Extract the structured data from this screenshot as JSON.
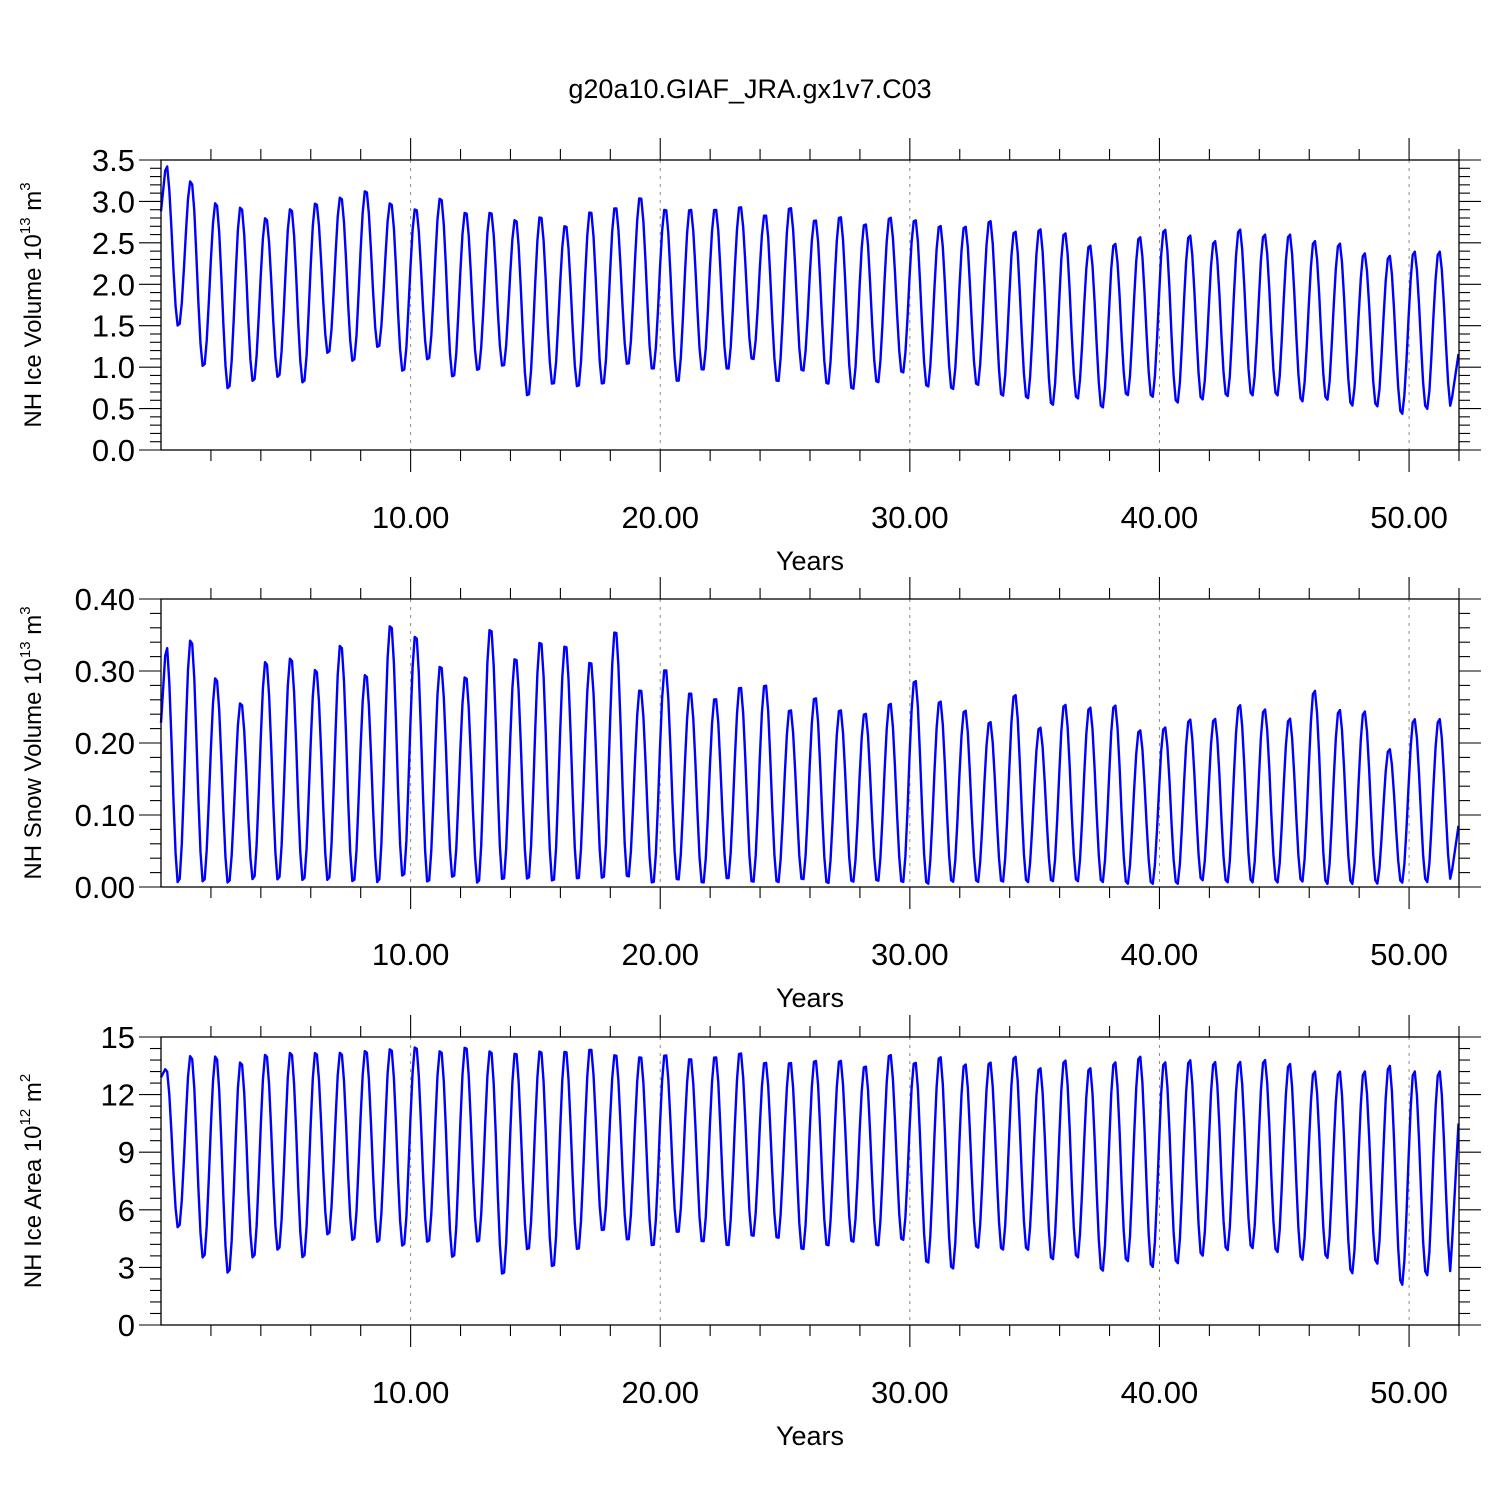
{
  "title": "g20a10.GIAF_JRA.gx1v7.C03",
  "colors": {
    "line": "#0000ff",
    "axis": "#000000",
    "grid": "#8a8a8a"
  },
  "chart_data": [
    {
      "type": "line",
      "ylabel_main": "NH Ice Volume 10",
      "ylabel_exp": "13",
      "ylabel_unit": " m",
      "ylabel_unit_exp": "3",
      "xlabel": "Years",
      "xlim": [
        0,
        52
      ],
      "ylim": [
        0,
        3.5
      ],
      "xticks": [
        10,
        20,
        30,
        40,
        50
      ],
      "xtick_labels": [
        "10.00",
        "20.00",
        "30.00",
        "40.00",
        "50.00"
      ],
      "yticks": [
        0,
        0.5,
        1,
        1.5,
        2,
        2.5,
        3,
        3.5
      ],
      "ytick_labels": [
        "0.0",
        "0.5",
        "1.0",
        "1.5",
        "2.0",
        "2.5",
        "3.0",
        "3.5"
      ],
      "grid_x": true,
      "series": [
        {
          "x_start": 0,
          "x_step": 0.0833,
          "x_end": 52,
          "annual_max": [
            3.47,
            3.26,
            3.0,
            2.95,
            2.82,
            2.93,
            3.0,
            3.07,
            3.15,
            3.0,
            2.93,
            3.06,
            2.89,
            2.89,
            2.8,
            2.84,
            2.73,
            2.9,
            2.95,
            3.07,
            2.93,
            2.93,
            2.93,
            2.96,
            2.86,
            2.95,
            2.8,
            2.84,
            2.75,
            2.83,
            2.8,
            2.73,
            2.72,
            2.79,
            2.66,
            2.69,
            2.64,
            2.49,
            2.51,
            2.59,
            2.68,
            2.61,
            2.54,
            2.68,
            2.62,
            2.62,
            2.54,
            2.51,
            2.39,
            2.36,
            2.41
          ],
          "annual_min": [
            1.48,
            0.99,
            0.72,
            0.81,
            0.86,
            0.79,
            1.15,
            1.05,
            1.22,
            0.93,
            1.07,
            0.86,
            0.94,
            0.99,
            0.63,
            0.77,
            0.74,
            0.77,
            1.01,
            0.95,
            0.8,
            0.94,
            0.95,
            1.07,
            0.8,
            0.93,
            0.77,
            0.71,
            0.79,
            0.91,
            0.74,
            0.71,
            0.76,
            0.63,
            0.6,
            0.52,
            0.6,
            0.49,
            0.64,
            0.62,
            0.55,
            0.59,
            0.63,
            0.64,
            0.64,
            0.57,
            0.59,
            0.52,
            0.51,
            0.42,
            0.48
          ],
          "start_value": 2.88,
          "end_value": 1.2
        }
      ]
    },
    {
      "type": "line",
      "ylabel_main": "NH Snow Volume 10",
      "ylabel_exp": "13",
      "ylabel_unit": " m",
      "ylabel_unit_exp": "3",
      "xlabel": "Years",
      "xlim": [
        0,
        52
      ],
      "ylim": [
        0,
        0.4
      ],
      "xticks": [
        10,
        20,
        30,
        40,
        50
      ],
      "xtick_labels": [
        "10.00",
        "20.00",
        "30.00",
        "40.00",
        "50.00"
      ],
      "yticks": [
        0,
        0.1,
        0.2,
        0.3,
        0.4
      ],
      "ytick_labels": [
        "0.00",
        "0.10",
        "0.20",
        "0.30",
        "0.40"
      ],
      "grid_x": true,
      "series": [
        {
          "x_start": 0,
          "x_step": 0.0833,
          "x_end": 52,
          "annual_max": [
            0.34,
            0.346,
            0.293,
            0.258,
            0.316,
            0.321,
            0.305,
            0.339,
            0.298,
            0.367,
            0.352,
            0.31,
            0.295,
            0.362,
            0.321,
            0.344,
            0.339,
            0.316,
            0.359,
            0.277,
            0.306,
            0.273,
            0.265,
            0.281,
            0.284,
            0.249,
            0.266,
            0.249,
            0.244,
            0.258,
            0.29,
            0.261,
            0.248,
            0.232,
            0.27,
            0.224,
            0.256,
            0.252,
            0.255,
            0.22,
            0.224,
            0.235,
            0.236,
            0.255,
            0.249,
            0.236,
            0.275,
            0.248,
            0.246,
            0.193,
            0.235
          ],
          "annual_min": [
            0.003,
            0.004,
            0.003,
            0.008,
            0.007,
            0.006,
            0.006,
            0.004,
            0.003,
            0.011,
            0.003,
            0.01,
            0.002,
            0.006,
            0.007,
            0.004,
            0.007,
            0.008,
            0.01,
            0.002,
            0.006,
            0.002,
            0.008,
            0.003,
            0.003,
            0.007,
            0.002,
            0.004,
            0.005,
            0.003,
            0.001,
            0.004,
            0.004,
            0.004,
            0.004,
            0.005,
            0.005,
            0.004,
            0.002,
            0.002,
            0.002,
            0.007,
            0.004,
            0.004,
            0.004,
            0.005,
            0.002,
            0.002,
            0.003,
            0.004,
            0.005
          ],
          "start_value": 0.228,
          "end_value": 0.09
        }
      ]
    },
    {
      "type": "line",
      "ylabel_main": "NH Ice Area 10",
      "ylabel_exp": "12",
      "ylabel_unit": " m",
      "ylabel_unit_exp": "2",
      "xlabel": "Years",
      "xlim": [
        0,
        52
      ],
      "ylim": [
        0,
        15
      ],
      "xticks": [
        10,
        20,
        30,
        40,
        50
      ],
      "xtick_labels": [
        "10.00",
        "20.00",
        "30.00",
        "40.00",
        "50.00"
      ],
      "yticks": [
        0,
        3,
        6,
        9,
        12,
        15
      ],
      "ytick_labels": [
        "0",
        "3",
        "6",
        "9",
        "12",
        "15"
      ],
      "grid_x": true,
      "series": [
        {
          "x_start": 0,
          "x_step": 0.0833,
          "x_end": 52,
          "annual_max": [
            13.4,
            14.1,
            14.1,
            13.8,
            14.2,
            14.3,
            14.3,
            14.3,
            14.4,
            14.5,
            14.6,
            14.4,
            14.6,
            14.4,
            14.3,
            14.4,
            14.4,
            14.5,
            14.2,
            14.1,
            14.2,
            14.0,
            14.1,
            14.3,
            13.8,
            13.8,
            13.9,
            13.9,
            13.6,
            14.2,
            13.8,
            14.1,
            13.7,
            13.8,
            14.1,
            13.5,
            13.9,
            13.5,
            13.8,
            14.1,
            13.8,
            13.9,
            13.8,
            13.8,
            13.9,
            13.7,
            13.3,
            13.3,
            13.3,
            13.6,
            13.3
          ],
          "annual_min": [
            5.0,
            3.4,
            2.6,
            3.4,
            3.8,
            3.4,
            4.6,
            4.3,
            4.2,
            4.0,
            4.2,
            3.4,
            4.2,
            2.5,
            3.8,
            2.9,
            3.8,
            4.8,
            4.3,
            4.0,
            4.7,
            4.2,
            4.0,
            4.5,
            4.4,
            3.8,
            4.0,
            4.2,
            4.0,
            4.3,
            3.1,
            2.8,
            3.9,
            3.8,
            3.8,
            3.3,
            3.4,
            2.7,
            3.2,
            2.9,
            3.1,
            3.5,
            3.8,
            3.9,
            3.7,
            3.3,
            3.4,
            2.6,
            3.1,
            2.0,
            2.5
          ],
          "start_value": 12.9,
          "end_value": 11.0
        }
      ]
    }
  ]
}
